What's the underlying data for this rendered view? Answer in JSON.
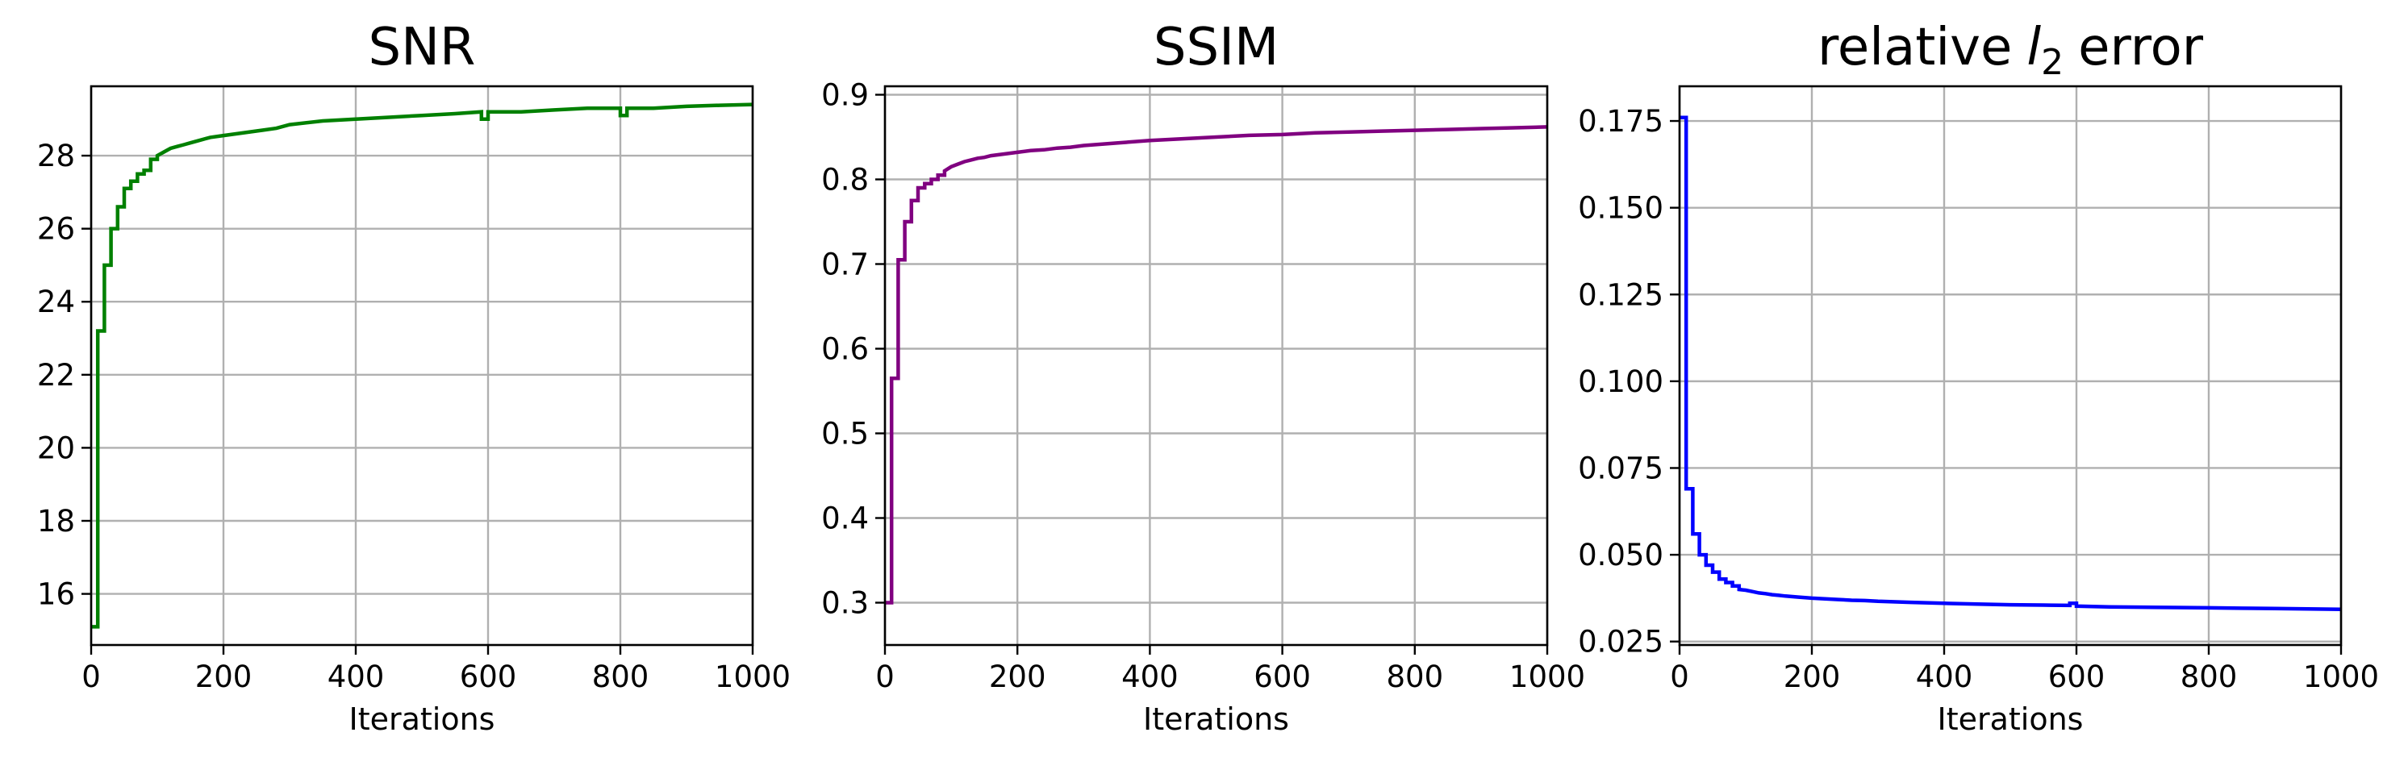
{
  "chart_data": [
    {
      "type": "line",
      "title": "SNR",
      "xlabel": "Iterations",
      "ylabel": "",
      "xlim": [
        0,
        1000
      ],
      "ylim": [
        14.6,
        29.9
      ],
      "xticks": [
        0,
        200,
        400,
        600,
        800,
        1000
      ],
      "yticks": [
        16,
        18,
        20,
        22,
        24,
        26,
        28
      ],
      "ytick_decimals": 0,
      "grid": true,
      "color": "#008000",
      "series": [
        {
          "x": [
            0,
            10,
            10,
            20,
            20,
            30,
            30,
            40,
            40,
            50,
            50,
            60,
            60,
            70,
            70,
            80,
            80,
            90,
            90,
            100,
            100,
            110,
            120,
            130,
            140,
            150,
            160,
            180,
            200,
            220,
            240,
            260,
            280,
            300,
            350,
            400,
            450,
            500,
            550,
            590,
            590,
            600,
            600,
            650,
            700,
            750,
            800,
            800,
            810,
            810,
            850,
            900,
            950,
            1000
          ],
          "y": [
            15.1,
            15.1,
            23.2,
            23.2,
            25.0,
            25.0,
            26.0,
            26.0,
            26.6,
            26.6,
            27.1,
            27.1,
            27.3,
            27.3,
            27.5,
            27.5,
            27.6,
            27.6,
            27.9,
            27.9,
            28.0,
            28.1,
            28.2,
            28.25,
            28.3,
            28.35,
            28.4,
            28.5,
            28.55,
            28.6,
            28.65,
            28.7,
            28.75,
            28.85,
            28.95,
            29.0,
            29.05,
            29.1,
            29.15,
            29.2,
            29.0,
            29.0,
            29.2,
            29.2,
            29.25,
            29.3,
            29.3,
            29.1,
            29.1,
            29.3,
            29.3,
            29.35,
            29.38,
            29.4
          ]
        }
      ]
    },
    {
      "type": "line",
      "title": "SSIM",
      "xlabel": "Iterations",
      "ylabel": "",
      "xlim": [
        0,
        1000
      ],
      "ylim": [
        0.25,
        0.91
      ],
      "xticks": [
        0,
        200,
        400,
        600,
        800,
        1000
      ],
      "yticks": [
        0.3,
        0.4,
        0.5,
        0.6,
        0.7,
        0.8,
        0.9
      ],
      "ytick_decimals": 1,
      "grid": true,
      "color": "#800080",
      "series": [
        {
          "x": [
            0,
            10,
            10,
            20,
            20,
            30,
            30,
            40,
            40,
            50,
            50,
            60,
            60,
            70,
            70,
            80,
            80,
            90,
            90,
            100,
            110,
            120,
            130,
            140,
            150,
            160,
            180,
            200,
            220,
            240,
            260,
            280,
            300,
            350,
            400,
            450,
            500,
            550,
            600,
            650,
            700,
            750,
            800,
            850,
            900,
            950,
            1000
          ],
          "y": [
            0.3,
            0.3,
            0.565,
            0.565,
            0.705,
            0.705,
            0.75,
            0.75,
            0.775,
            0.775,
            0.79,
            0.79,
            0.795,
            0.795,
            0.8,
            0.8,
            0.805,
            0.805,
            0.81,
            0.815,
            0.818,
            0.821,
            0.823,
            0.825,
            0.826,
            0.828,
            0.83,
            0.832,
            0.834,
            0.835,
            0.837,
            0.838,
            0.84,
            0.843,
            0.846,
            0.848,
            0.85,
            0.852,
            0.853,
            0.855,
            0.856,
            0.857,
            0.858,
            0.859,
            0.86,
            0.861,
            0.862
          ]
        }
      ]
    },
    {
      "type": "line",
      "title": "relative",
      "title_math": "l",
      "title_sub": "2",
      "title_suffix": "error",
      "xlabel": "Iterations",
      "ylabel": "",
      "xlim": [
        0,
        1000
      ],
      "ylim": [
        0.024,
        0.185
      ],
      "xticks": [
        0,
        200,
        400,
        600,
        800,
        1000
      ],
      "yticks": [
        0.025,
        0.05,
        0.075,
        0.1,
        0.125,
        0.15,
        0.175
      ],
      "ytick_decimals": 3,
      "grid": true,
      "color": "#0000ff",
      "series": [
        {
          "x": [
            0,
            10,
            10,
            20,
            20,
            30,
            30,
            40,
            40,
            50,
            50,
            60,
            60,
            70,
            70,
            80,
            80,
            90,
            90,
            100,
            110,
            120,
            130,
            140,
            150,
            160,
            180,
            200,
            220,
            240,
            260,
            280,
            300,
            350,
            400,
            450,
            500,
            550,
            590,
            590,
            600,
            600,
            650,
            700,
            750,
            800,
            850,
            900,
            950,
            1000
          ],
          "y": [
            0.176,
            0.176,
            0.069,
            0.069,
            0.056,
            0.056,
            0.05,
            0.05,
            0.047,
            0.047,
            0.045,
            0.045,
            0.043,
            0.043,
            0.042,
            0.042,
            0.041,
            0.041,
            0.04,
            0.0398,
            0.0394,
            0.039,
            0.0388,
            0.0385,
            0.0383,
            0.0381,
            0.0378,
            0.0375,
            0.0373,
            0.0371,
            0.0369,
            0.0368,
            0.0366,
            0.0363,
            0.036,
            0.0358,
            0.0356,
            0.0355,
            0.0354,
            0.036,
            0.036,
            0.0352,
            0.035,
            0.0349,
            0.0348,
            0.0347,
            0.0346,
            0.0345,
            0.0344,
            0.0343
          ]
        }
      ]
    }
  ]
}
